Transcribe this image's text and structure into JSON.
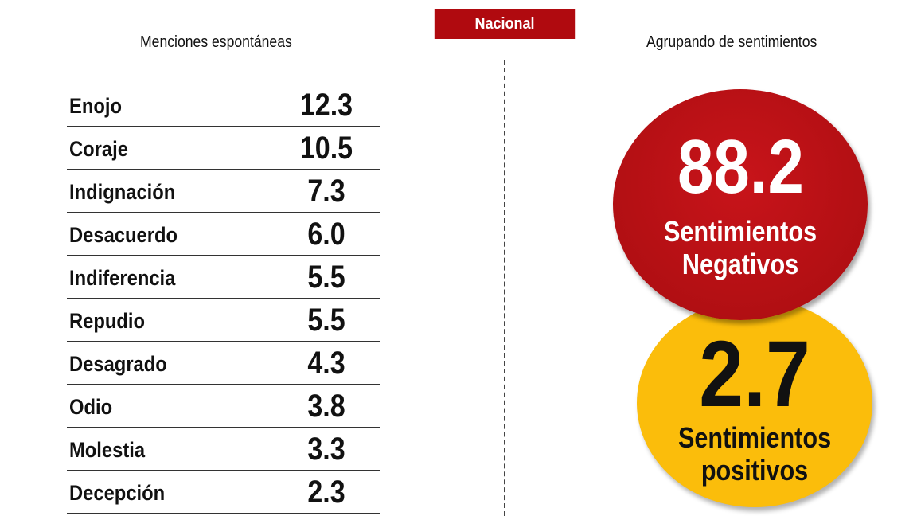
{
  "header": {
    "badge": "Nacional",
    "left_title": "Menciones espontáneas",
    "right_title": "Agrupando de sentimientos"
  },
  "mentions": [
    {
      "label": "Enojo",
      "value": "12.3"
    },
    {
      "label": "Coraje",
      "value": "10.5"
    },
    {
      "label": "Indignación",
      "value": "7.3"
    },
    {
      "label": "Desacuerdo",
      "value": "6.0"
    },
    {
      "label": "Indiferencia",
      "value": "5.5"
    },
    {
      "label": "Repudio",
      "value": "5.5"
    },
    {
      "label": "Desagrado",
      "value": "4.3"
    },
    {
      "label": "Odio",
      "value": "3.8"
    },
    {
      "label": "Molestia",
      "value": "3.3"
    },
    {
      "label": "Decepción",
      "value": "2.3"
    }
  ],
  "groups": {
    "negative": {
      "value": "88.2",
      "line1": "Sentimientos",
      "line2": "Negativos",
      "color": "#b00a0f"
    },
    "positive": {
      "value": "2.7",
      "line1": "Sentimientos",
      "line2": "positivos",
      "color": "#fbbd0b"
    }
  },
  "colors": {
    "accent": "#b00a0f"
  }
}
